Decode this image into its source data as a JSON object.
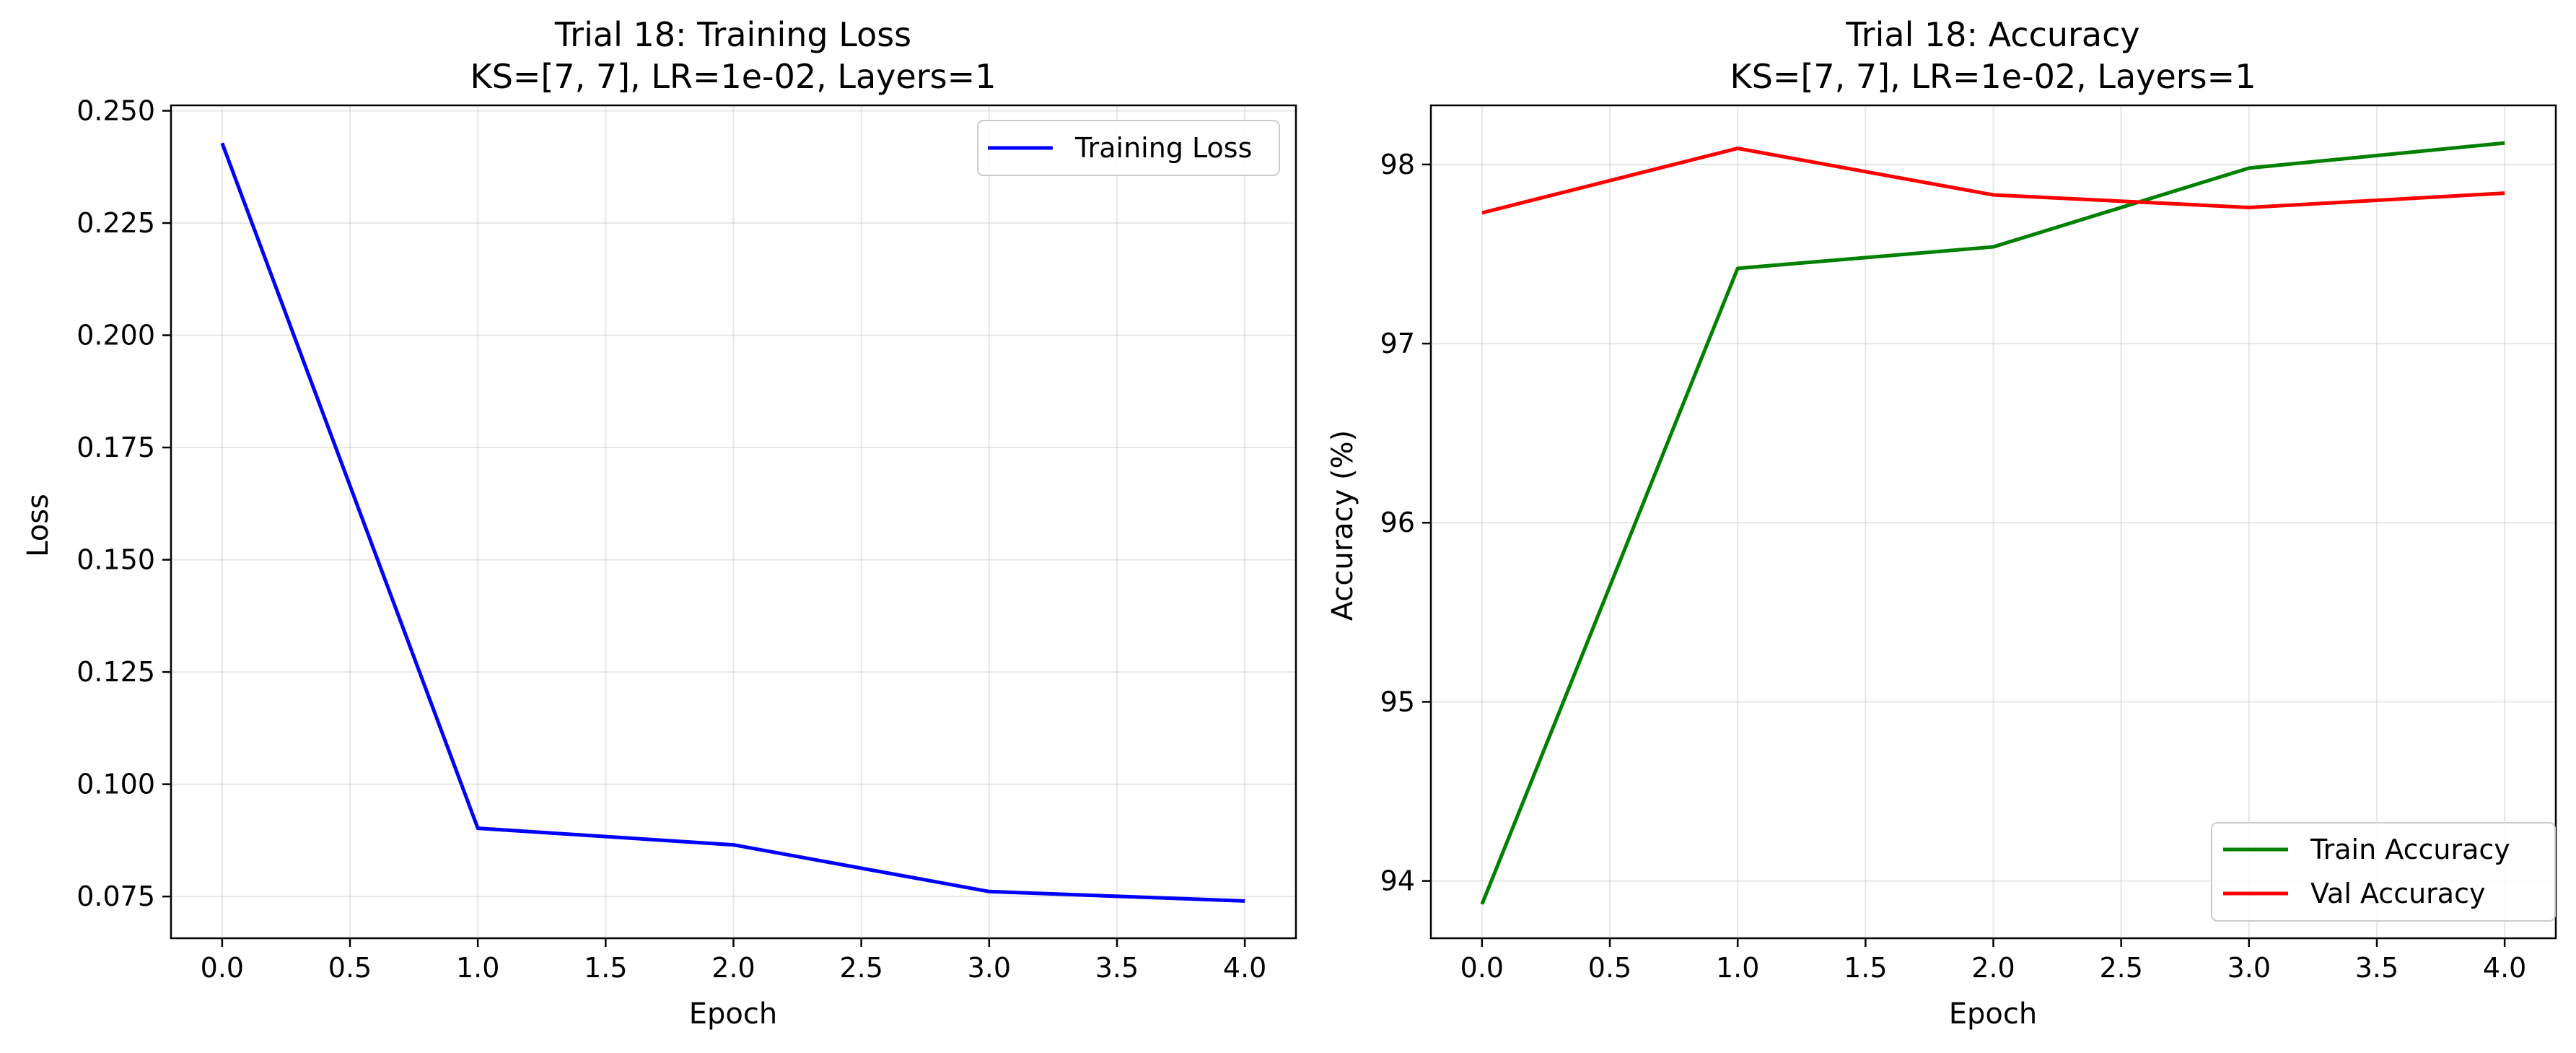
{
  "chart_data": [
    {
      "type": "line",
      "title": "Trial 18: Training Loss",
      "subtitle": "KS=[7, 7], LR=1e-02, Layers=1",
      "xlabel": "Epoch",
      "ylabel": "Loss",
      "x": [
        0,
        1,
        2,
        3,
        4
      ],
      "xlim": [
        -0.2,
        4.2
      ],
      "ylim": [
        0.0657,
        0.2512
      ],
      "xticks": [
        0.0,
        0.5,
        1.0,
        1.5,
        2.0,
        2.5,
        3.0,
        3.5,
        4.0
      ],
      "xtick_labels": [
        "0.0",
        "0.5",
        "1.0",
        "1.5",
        "2.0",
        "2.5",
        "3.0",
        "3.5",
        "4.0"
      ],
      "yticks": [
        0.075,
        0.1,
        0.125,
        0.15,
        0.175,
        0.2,
        0.225,
        0.25
      ],
      "ytick_labels": [
        "0.075",
        "0.100",
        "0.125",
        "0.150",
        "0.175",
        "0.200",
        "0.225",
        "0.250"
      ],
      "grid": true,
      "legend_position": "top-right",
      "series": [
        {
          "name": "Training Loss",
          "color": "#0000ff",
          "values": [
            0.2428,
            0.0902,
            0.0865,
            0.0761,
            0.074
          ]
        }
      ]
    },
    {
      "type": "line",
      "title": "Trial 18: Accuracy",
      "subtitle": "KS=[7, 7], LR=1e-02, Layers=1",
      "xlabel": "Epoch",
      "ylabel": "Accuracy (%)",
      "x": [
        0,
        1,
        2,
        3,
        4
      ],
      "xlim": [
        -0.2,
        4.2
      ],
      "ylim": [
        93.68,
        98.33
      ],
      "xticks": [
        0.0,
        0.5,
        1.0,
        1.5,
        2.0,
        2.5,
        3.0,
        3.5,
        4.0
      ],
      "xtick_labels": [
        "0.0",
        "0.5",
        "1.0",
        "1.5",
        "2.0",
        "2.5",
        "3.0",
        "3.5",
        "4.0"
      ],
      "yticks": [
        94,
        95,
        96,
        97,
        98
      ],
      "ytick_labels": [
        "94",
        "95",
        "96",
        "97",
        "98"
      ],
      "grid": true,
      "legend_position": "bottom-right",
      "series": [
        {
          "name": "Train Accuracy",
          "color": "#008000",
          "values": [
            93.87,
            97.42,
            97.54,
            97.98,
            98.12
          ]
        },
        {
          "name": "Val Accuracy",
          "color": "#ff0000",
          "values": [
            97.73,
            98.09,
            97.83,
            97.76,
            97.84
          ]
        }
      ]
    }
  ]
}
